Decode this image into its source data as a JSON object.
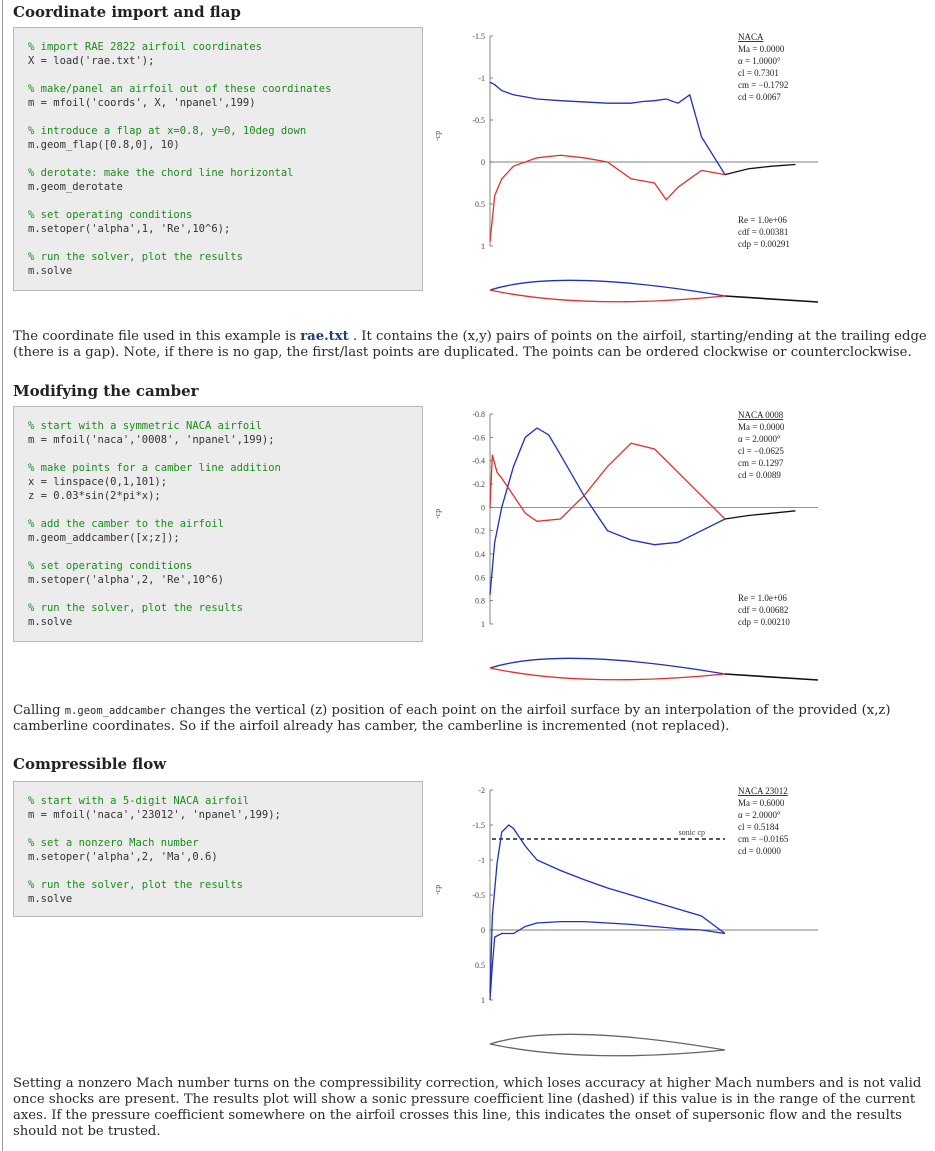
{
  "sections": [
    {
      "heading": "Coordinate import and flap",
      "code": [
        {
          "t": "% import RAE 2822 airfoil coordinates",
          "c": true
        },
        {
          "t": "X = load('rae.txt');",
          "c": false
        },
        {
          "t": "",
          "c": false
        },
        {
          "t": "% make/panel an airfoil out of these coordinates",
          "c": true
        },
        {
          "t": "m = mfoil('coords', X, 'npanel',199)",
          "c": false
        },
        {
          "t": "",
          "c": false
        },
        {
          "t": "% introduce a flap at x=0.8, y=0, 10deg down",
          "c": true
        },
        {
          "t": "m.geom_flap([0.8,0], 10)",
          "c": false
        },
        {
          "t": "",
          "c": false
        },
        {
          "t": "% derotate: make the chord line horizontal",
          "c": true
        },
        {
          "t": "m.geom_derotate",
          "c": false
        },
        {
          "t": "",
          "c": false
        },
        {
          "t": "% set operating conditions",
          "c": true
        },
        {
          "t": "m.setoper('alpha',1, 'Re',10^6);",
          "c": false
        },
        {
          "t": "",
          "c": false
        },
        {
          "t": "% run the solver, plot the results",
          "c": true
        },
        {
          "t": "m.solve",
          "c": false
        }
      ],
      "para_before": "The coordinate file used in this example is ",
      "para_link": "rae.txt",
      "para_after": " . It contains the (x,y) pairs of points on the airfoil, starting/ending at the trailing edge (there is a gap). Note, if there is no gap, the first/last points are duplicated. The points can be ordered clockwise or counterclockwise."
    },
    {
      "heading": "Modifying the camber",
      "code": [
        {
          "t": "% start with a symmetric NACA airfoil",
          "c": true
        },
        {
          "t": "m = mfoil('naca','0008', 'npanel',199);",
          "c": false
        },
        {
          "t": "",
          "c": false
        },
        {
          "t": "% make points for a camber line addition",
          "c": true
        },
        {
          "t": "x = linspace(0,1,101);",
          "c": false
        },
        {
          "t": "z = 0.03*sin(2*pi*x);",
          "c": false
        },
        {
          "t": "",
          "c": false
        },
        {
          "t": "% add the camber to the airfoil",
          "c": true
        },
        {
          "t": "m.geom_addcamber([x;z]);",
          "c": false
        },
        {
          "t": "",
          "c": false
        },
        {
          "t": "% set operating conditions",
          "c": true
        },
        {
          "t": "m.setoper('alpha',2, 'Re',10^6)",
          "c": false
        },
        {
          "t": "",
          "c": false
        },
        {
          "t": "% run the solver, plot the results",
          "c": true
        },
        {
          "t": "m.solve",
          "c": false
        }
      ],
      "para_before": "Calling ",
      "para_code": "m.geom_addcamber",
      "para_after": " changes the vertical (z) position of each point on the airfoil surface by an interpolation of the provided (x,z) camberline coordinates. So if the airfoil already has camber, the camberline is incremented (not replaced)."
    },
    {
      "heading": "Compressible flow",
      "code": [
        {
          "t": "% start with a 5-digit NACA airfoil",
          "c": true
        },
        {
          "t": "m = mfoil('naca','23012', 'npanel',199);",
          "c": false
        },
        {
          "t": "",
          "c": false
        },
        {
          "t": "% set a nonzero Mach number",
          "c": true
        },
        {
          "t": "m.setoper('alpha',2, 'Ma',0.6)",
          "c": false
        },
        {
          "t": "",
          "c": false
        },
        {
          "t": "% run the solver, plot the results",
          "c": true
        },
        {
          "t": "m.solve",
          "c": false
        }
      ],
      "para": "Setting a nonzero Mach number turns on the compressibility correction, which loses accuracy at higher Mach numbers and is not valid once shocks are present. The results plot will show a sonic pressure coefficient line (dashed) if this value is in the range of the current axes. If the pressure coefficient somewhere on the airfoil crosses this line, this indicates the onset of supersonic flow and the results should not be trusted."
    }
  ],
  "chart_data": [
    {
      "type": "line",
      "ylabel": "-cp",
      "yticks": [
        "-1.5",
        "-1",
        "-0.5",
        "0",
        "0.5",
        "1"
      ],
      "ylim": [
        -1.5,
        1
      ],
      "info_top": [
        "NACA",
        "Ma = 0.0000",
        "α = 1.0000°",
        "cl = 0.7301",
        "cm = −0.1792",
        "cd = 0.0067"
      ],
      "info_bottom": [
        "Re = 1.0e+06",
        "cdf = 0.00381",
        "cdp = 0.00291"
      ],
      "series": [
        {
          "color": "#1f2fbf",
          "x": [
            0.0,
            0.02,
            0.05,
            0.1,
            0.2,
            0.3,
            0.5,
            0.6,
            0.65,
            0.7,
            0.75,
            0.8,
            0.85,
            0.9,
            1.0
          ],
          "y": [
            -0.95,
            -0.92,
            -0.85,
            -0.8,
            -0.75,
            -0.73,
            -0.7,
            -0.7,
            -0.72,
            -0.73,
            -0.75,
            -0.7,
            -0.8,
            -0.3,
            0.15
          ]
        },
        {
          "color": "#e03030",
          "x": [
            0.0,
            0.02,
            0.05,
            0.1,
            0.2,
            0.3,
            0.4,
            0.5,
            0.6,
            0.7,
            0.75,
            0.8,
            0.85,
            0.9,
            1.0
          ],
          "y": [
            0.95,
            0.4,
            0.2,
            0.05,
            -0.05,
            -0.08,
            -0.05,
            0.0,
            0.2,
            0.25,
            0.45,
            0.3,
            0.2,
            0.1,
            0.15
          ]
        },
        {
          "color": "#111111",
          "x": [
            1.0,
            1.1,
            1.2,
            1.3
          ],
          "y": [
            0.15,
            0.08,
            0.05,
            0.03
          ]
        }
      ]
    },
    {
      "type": "line",
      "ylabel": "-cp",
      "yticks": [
        "-0.8",
        "-0.6",
        "-0.4",
        "-0.2",
        "0",
        "0.2",
        "0.4",
        "0.6",
        "0.8",
        "1"
      ],
      "ylim": [
        -0.8,
        1
      ],
      "info_top": [
        "NACA 0008",
        "Ma = 0.0000",
        "α = 2.0000°",
        "cl = −0.0625",
        "cm = 0.1297",
        "cd = 0.0089"
      ],
      "info_bottom": [
        "Re = 1.0e+06",
        "cdf = 0.00682",
        "cdp = 0.00210"
      ],
      "series": [
        {
          "color": "#1f2fbf",
          "x": [
            0.0,
            0.02,
            0.05,
            0.1,
            0.15,
            0.2,
            0.25,
            0.3,
            0.4,
            0.5,
            0.6,
            0.7,
            0.8,
            0.9,
            1.0
          ],
          "y": [
            0.75,
            0.3,
            0.0,
            -0.35,
            -0.6,
            -0.68,
            -0.62,
            -0.45,
            -0.1,
            0.2,
            0.28,
            0.32,
            0.3,
            0.2,
            0.1
          ]
        },
        {
          "color": "#e03030",
          "x": [
            0.0,
            0.01,
            0.03,
            0.05,
            0.1,
            0.15,
            0.2,
            0.3,
            0.4,
            0.5,
            0.6,
            0.7,
            0.8,
            0.9,
            1.0
          ],
          "y": [
            0.0,
            -0.45,
            -0.3,
            -0.25,
            -0.1,
            0.05,
            0.12,
            0.1,
            -0.1,
            -0.35,
            -0.55,
            -0.5,
            -0.3,
            -0.1,
            0.1
          ]
        },
        {
          "color": "#111111",
          "x": [
            1.0,
            1.1,
            1.2,
            1.3
          ],
          "y": [
            0.1,
            0.07,
            0.05,
            0.03
          ]
        }
      ]
    },
    {
      "type": "line",
      "ylabel": "-cp",
      "yticks": [
        "-2",
        "-1.5",
        "-1",
        "-0.5",
        "0",
        "0.5",
        "1"
      ],
      "ylim": [
        -2,
        1
      ],
      "sonic_cp": -1.3,
      "sonic_label": "sonic cp",
      "info_top": [
        "NACA 23012",
        "Ma = 0.6000",
        "α = 2.0000°",
        "cl = 0.5184",
        "cm = −0.0165",
        "cd = 0.0000"
      ],
      "series": [
        {
          "color": "#1f2fbf",
          "x": [
            0.0,
            0.01,
            0.03,
            0.05,
            0.08,
            0.1,
            0.15,
            0.2,
            0.3,
            0.4,
            0.5,
            0.6,
            0.7,
            0.8,
            0.9,
            1.0
          ],
          "y": [
            0.9,
            -0.2,
            -0.95,
            -1.4,
            -1.5,
            -1.45,
            -1.2,
            -1.0,
            -0.85,
            -0.72,
            -0.6,
            -0.5,
            -0.4,
            -0.3,
            -0.2,
            0.05
          ]
        },
        {
          "color": "#1f2fbf",
          "x": [
            0.0,
            0.01,
            0.02,
            0.05,
            0.1,
            0.15,
            0.2,
            0.3,
            0.4,
            0.5,
            0.6,
            0.7,
            0.8,
            0.9,
            1.0
          ],
          "y": [
            1.0,
            0.5,
            0.1,
            0.05,
            0.05,
            -0.05,
            -0.1,
            -0.12,
            -0.12,
            -0.1,
            -0.08,
            -0.05,
            -0.02,
            0.0,
            0.05
          ]
        }
      ]
    }
  ]
}
